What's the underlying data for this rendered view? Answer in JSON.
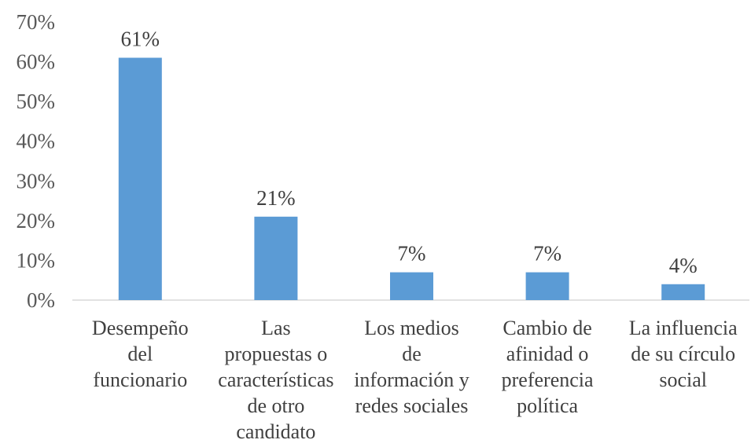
{
  "chart_data": {
    "type": "bar",
    "title": "",
    "xlabel": "",
    "ylabel": "",
    "ylim": [
      0,
      0.7
    ],
    "yticks": [
      0,
      0.1,
      0.2,
      0.3,
      0.4,
      0.5,
      0.6,
      0.7
    ],
    "ytick_labels": [
      "0%",
      "10%",
      "20%",
      "30%",
      "40%",
      "50%",
      "60%",
      "70%"
    ],
    "grid": false,
    "legend": "none",
    "bar_color": "#5B9BD5",
    "categories": [
      "Desempeño del funcionario",
      "Las propuestas o características de otro candidato",
      "Los medios de información y redes sociales",
      "Cambio de afinidad o preferencia política",
      "La influencia de su círculo social"
    ],
    "category_lines": [
      [
        "Desempeño",
        "del",
        "funcionario"
      ],
      [
        "Las",
        "propuestas o",
        "características",
        "de otro",
        "candidato"
      ],
      [
        "Los medios",
        "de",
        "información y",
        "redes sociales"
      ],
      [
        "Cambio de",
        "afinidad o",
        "preferencia",
        "política"
      ],
      [
        "La influencia",
        "de su círculo",
        "social"
      ]
    ],
    "values": [
      0.61,
      0.21,
      0.07,
      0.07,
      0.04
    ],
    "data_labels": [
      "61%",
      "21%",
      "7%",
      "7%",
      "4%"
    ]
  }
}
